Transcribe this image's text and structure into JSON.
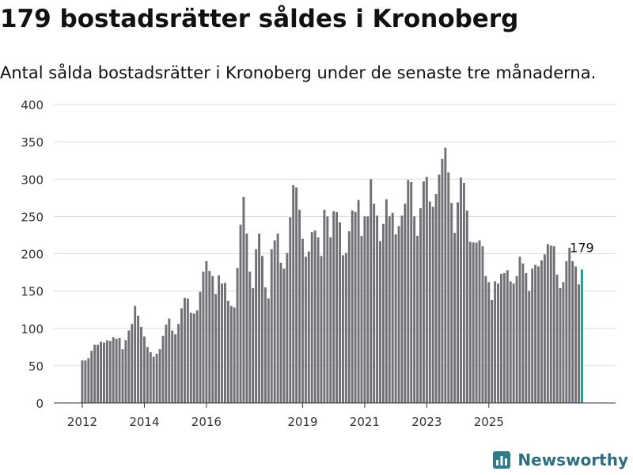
{
  "title": "179 bostadsrätter såldes i Kronoberg",
  "subtitle": "Antal sålda bostadsrätter i Kronoberg under de senaste tre månaderna.",
  "brand": {
    "name": "Newsworthy",
    "color": "#2e7d8c",
    "icon": "bar-chart-logo-icon"
  },
  "colors": {
    "bar": "#707076",
    "highlight": "#1a9e8f",
    "grid": "#dcdcdc",
    "axis": "#333333"
  },
  "chart_data": {
    "type": "bar",
    "title": "179 bostadsrätter såldes i Kronoberg",
    "subtitle": "Antal sålda bostadsrätter i Kronoberg under de senaste tre månaderna.",
    "xlabel": "",
    "ylabel": "",
    "ylim": [
      0,
      400
    ],
    "yticks": [
      0,
      50,
      100,
      150,
      200,
      250,
      300,
      350,
      400
    ],
    "xticks": [
      {
        "label": "2012",
        "index": 0
      },
      {
        "label": "2014",
        "index": 20
      },
      {
        "label": "2016",
        "index": 40
      },
      {
        "label": "2019",
        "index": 71
      },
      {
        "label": "2021",
        "index": 91
      },
      {
        "label": "2023",
        "index": 111
      },
      {
        "label": "2025",
        "index": 131
      }
    ],
    "grid": true,
    "values": [
      57,
      57,
      60,
      70,
      78,
      78,
      82,
      81,
      84,
      83,
      88,
      86,
      87,
      72,
      84,
      97,
      106,
      130,
      117,
      102,
      89,
      75,
      68,
      62,
      66,
      72,
      90,
      105,
      113,
      97,
      92,
      106,
      127,
      141,
      140,
      121,
      120,
      124,
      149,
      176,
      190,
      177,
      170,
      146,
      171,
      160,
      161,
      137,
      130,
      128,
      181,
      239,
      276,
      227,
      176,
      154,
      206,
      227,
      197,
      155,
      140,
      206,
      218,
      227,
      188,
      180,
      201,
      249,
      292,
      289,
      259,
      220,
      196,
      203,
      229,
      231,
      222,
      197,
      259,
      250,
      222,
      257,
      256,
      242,
      198,
      201,
      230,
      258,
      256,
      272,
      224,
      250,
      250,
      300,
      267,
      251,
      217,
      240,
      273,
      250,
      255,
      226,
      237,
      251,
      267,
      299,
      296,
      250,
      224,
      261,
      297,
      303,
      270,
      263,
      280,
      306,
      327,
      342,
      309,
      268,
      228,
      269,
      302,
      295,
      258,
      216,
      215,
      215,
      218,
      210,
      170,
      162,
      138,
      163,
      160,
      173,
      174,
      178,
      163,
      160,
      170,
      196,
      187,
      174,
      150,
      180,
      185,
      183,
      191,
      199,
      213,
      211,
      210,
      172,
      154,
      162,
      190,
      208,
      190,
      183,
      159,
      179
    ],
    "highlight_last": true,
    "annotation": {
      "text": "179",
      "target": "last"
    }
  }
}
